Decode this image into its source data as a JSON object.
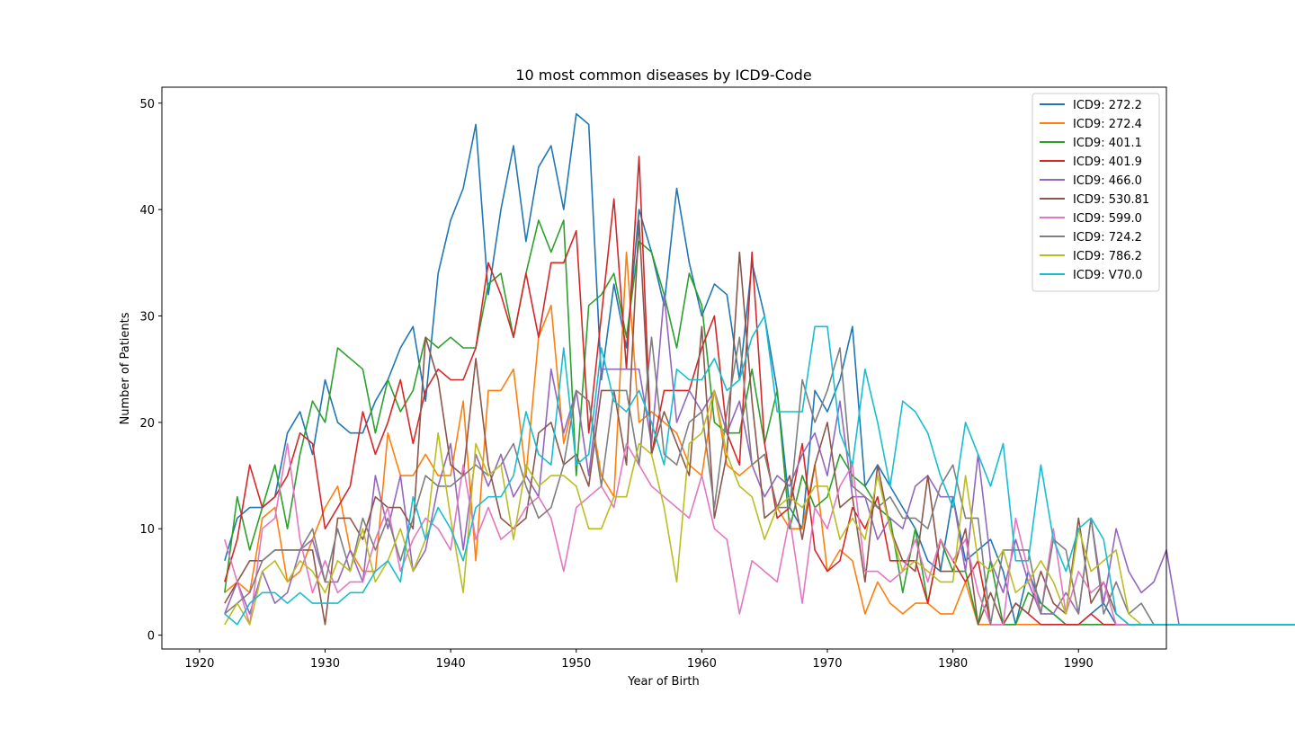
{
  "chart_data": {
    "type": "line",
    "title": "10 most common diseases by ICD9-Code",
    "xlabel": "Year of Birth",
    "ylabel": "Number of Patients",
    "xlim": [
      1917,
      1997
    ],
    "ylim": [
      -1.3,
      51.5
    ],
    "xticks": [
      1920,
      1930,
      1940,
      1950,
      1960,
      1970,
      1980,
      1990
    ],
    "yticks": [
      0,
      10,
      20,
      30,
      40,
      50
    ],
    "grid": false,
    "legend_position": "top-right",
    "series": [
      {
        "name": "ICD9: 272.2",
        "color": "#1f77b4",
        "x_start": 1922,
        "values": [
          7,
          11,
          12,
          12,
          13,
          19,
          21,
          17,
          24,
          20,
          19,
          19,
          22,
          24,
          27,
          29,
          22,
          34,
          39,
          42,
          48,
          32,
          40,
          46,
          37,
          44,
          46,
          40,
          49,
          48,
          24,
          33,
          27,
          40,
          36,
          31,
          42,
          35,
          30,
          33,
          32,
          24,
          35,
          30,
          23,
          12,
          10,
          23,
          21,
          24,
          29,
          14,
          16,
          14,
          12,
          10,
          7,
          6,
          13,
          7,
          8,
          9,
          6,
          1,
          6,
          3,
          2,
          1,
          1,
          2,
          3,
          1,
          1,
          1,
          1,
          1,
          1,
          1,
          1,
          1,
          1,
          1,
          1,
          1,
          1,
          1,
          1,
          1,
          1
        ]
      },
      {
        "name": "ICD9: 272.4",
        "color": "#ff7f0e",
        "x_start": 1922,
        "values": [
          4,
          5,
          4,
          11,
          12,
          5,
          6,
          9,
          12,
          14,
          8,
          6,
          6,
          19,
          15,
          15,
          17,
          15,
          15,
          22,
          7,
          23,
          23,
          25,
          15,
          28,
          31,
          18,
          23,
          22,
          15,
          13,
          36,
          20,
          21,
          20,
          19,
          16,
          15,
          23,
          16,
          15,
          16,
          17,
          12,
          10,
          10,
          16,
          6,
          8,
          7,
          2,
          5,
          3,
          2,
          3,
          3,
          2,
          2,
          5,
          1,
          1,
          1,
          1,
          1,
          1,
          1,
          1,
          1,
          1,
          1,
          1,
          1,
          1,
          1,
          1,
          1,
          1,
          1,
          1,
          1,
          1,
          1,
          1,
          1,
          1,
          1,
          1,
          1
        ]
      },
      {
        "name": "ICD9: 401.1",
        "color": "#2ca02c",
        "x_start": 1922,
        "values": [
          4,
          13,
          8,
          12,
          16,
          10,
          17,
          22,
          20,
          27,
          26,
          25,
          19,
          24,
          21,
          23,
          28,
          27,
          28,
          27,
          27,
          33,
          34,
          28,
          34,
          39,
          36,
          39,
          15,
          31,
          32,
          34,
          28,
          37,
          36,
          32,
          27,
          34,
          31,
          20,
          19,
          19,
          25,
          18,
          23,
          10,
          15,
          12,
          13,
          17,
          15,
          14,
          12,
          11,
          4,
          10,
          3,
          9,
          6,
          6,
          1,
          7,
          1,
          1,
          4,
          3,
          2,
          1,
          1,
          1,
          1,
          1,
          1,
          1,
          1,
          1,
          1,
          1,
          1,
          1,
          1,
          1,
          1,
          1,
          1,
          1,
          1,
          1,
          1
        ]
      },
      {
        "name": "ICD9: 401.9",
        "color": "#d62728",
        "x_start": 1922,
        "values": [
          5,
          9,
          16,
          12,
          13,
          15,
          19,
          18,
          10,
          12,
          14,
          21,
          17,
          20,
          24,
          18,
          23,
          25,
          24,
          24,
          27,
          35,
          32,
          28,
          34,
          28,
          35,
          35,
          38,
          19,
          30,
          41,
          25,
          45,
          17,
          23,
          23,
          23,
          27,
          30,
          19,
          16,
          36,
          18,
          11,
          12,
          18,
          8,
          6,
          7,
          12,
          10,
          13,
          7,
          7,
          7,
          3,
          9,
          7,
          5,
          7,
          1,
          1,
          3,
          2,
          1,
          1,
          1,
          1,
          2,
          1,
          1,
          1,
          1,
          1,
          1,
          1,
          1,
          1,
          1,
          1,
          1,
          1,
          1,
          1,
          1,
          1,
          1,
          1
        ]
      },
      {
        "name": "ICD9: 466.0",
        "color": "#9467bd",
        "x_start": 1922,
        "values": [
          2,
          5,
          2,
          6,
          3,
          4,
          8,
          9,
          5,
          5,
          8,
          5,
          15,
          10,
          15,
          6,
          8,
          14,
          18,
          8,
          17,
          14,
          17,
          13,
          15,
          13,
          25,
          19,
          23,
          15,
          25,
          25,
          25,
          25,
          18,
          32,
          20,
          23,
          21,
          23,
          19,
          22,
          16,
          13,
          15,
          14,
          17,
          19,
          15,
          22,
          13,
          13,
          9,
          11,
          10,
          14,
          15,
          13,
          13,
          6,
          17,
          7,
          4,
          9,
          5,
          2,
          2,
          4,
          2,
          11,
          3,
          10,
          6,
          4,
          5,
          8,
          1,
          1,
          1,
          1,
          1,
          1,
          1,
          1,
          1,
          1,
          1,
          1,
          1
        ]
      },
      {
        "name": "ICD9: 530.81",
        "color": "#8c564b",
        "x_start": 1922,
        "values": [
          3,
          5,
          7,
          7,
          8,
          8,
          8,
          8,
          1,
          11,
          11,
          9,
          13,
          12,
          12,
          10,
          28,
          24,
          16,
          15,
          26,
          16,
          11,
          10,
          11,
          19,
          20,
          16,
          17,
          14,
          23,
          23,
          16,
          39,
          17,
          21,
          18,
          15,
          29,
          11,
          17,
          36,
          22,
          11,
          12,
          15,
          9,
          16,
          20,
          12,
          13,
          5,
          16,
          10,
          7,
          6,
          15,
          6,
          6,
          10,
          1,
          4,
          1,
          3,
          2,
          6,
          3,
          2,
          11,
          3,
          5,
          2,
          1,
          1,
          1,
          1,
          1,
          1,
          1,
          1,
          1,
          1,
          1,
          1,
          1,
          1,
          1,
          1,
          1
        ]
      },
      {
        "name": "ICD9: 599.0",
        "color": "#e377c2",
        "x_start": 1922,
        "values": [
          9,
          5,
          1,
          10,
          11,
          18,
          9,
          4,
          7,
          4,
          5,
          5,
          9,
          12,
          6,
          9,
          11,
          10,
          8,
          16,
          9,
          12,
          9,
          10,
          12,
          13,
          11,
          6,
          12,
          13,
          14,
          12,
          18,
          16,
          14,
          13,
          12,
          11,
          15,
          10,
          9,
          2,
          7,
          6,
          5,
          11,
          3,
          12,
          10,
          14,
          16,
          6,
          6,
          5,
          6,
          9,
          5,
          9,
          7,
          9,
          4,
          1,
          1,
          11,
          6,
          2,
          10,
          2,
          6,
          4,
          5,
          1,
          1,
          1,
          1,
          1,
          1,
          1,
          1,
          1,
          1,
          1,
          1,
          1,
          1,
          1,
          1,
          1,
          1
        ]
      },
      {
        "name": "ICD9: 724.2",
        "color": "#7f7f7f",
        "x_start": 1922,
        "values": [
          2,
          3,
          4,
          7,
          8,
          8,
          8,
          10,
          5,
          10,
          6,
          11,
          8,
          11,
          7,
          11,
          15,
          14,
          14,
          15,
          16,
          15,
          16,
          18,
          14,
          11,
          12,
          16,
          23,
          22,
          14,
          23,
          23,
          16,
          28,
          17,
          16,
          20,
          21,
          12,
          21,
          28,
          16,
          17,
          12,
          12,
          24,
          20,
          23,
          27,
          14,
          13,
          12,
          13,
          11,
          11,
          10,
          14,
          16,
          11,
          11,
          1,
          8,
          8,
          8,
          2,
          9,
          8,
          2,
          11,
          2,
          5,
          2,
          3,
          1,
          1,
          1,
          1,
          1,
          1,
          1,
          1,
          1,
          1,
          1,
          1,
          1,
          1,
          1
        ]
      },
      {
        "name": "ICD9: 786.2",
        "color": "#bcbd22",
        "x_start": 1922,
        "values": [
          1,
          3,
          1,
          6,
          7,
          5,
          7,
          6,
          4,
          7,
          6,
          10,
          5,
          7,
          10,
          6,
          9,
          19,
          11,
          4,
          18,
          15,
          16,
          9,
          16,
          14,
          15,
          15,
          14,
          10,
          10,
          13,
          13,
          18,
          17,
          12,
          5,
          18,
          19,
          23,
          17,
          14,
          13,
          9,
          12,
          13,
          12,
          14,
          14,
          9,
          11,
          9,
          15,
          10,
          6,
          7,
          6,
          5,
          5,
          15,
          7,
          6,
          8,
          4,
          5,
          7,
          5,
          2,
          10,
          6,
          7,
          8,
          2,
          1,
          1,
          1,
          1,
          1,
          1,
          1,
          1,
          1,
          1,
          1,
          1,
          1,
          1,
          1,
          1
        ]
      },
      {
        "name": "ICD9: V70.0",
        "color": "#17becf",
        "x_start": 1922,
        "values": [
          2,
          1,
          3,
          4,
          4,
          3,
          4,
          3,
          3,
          3,
          4,
          4,
          6,
          7,
          5,
          13,
          9,
          12,
          10,
          7,
          12,
          13,
          13,
          15,
          21,
          17,
          16,
          27,
          16,
          17,
          27,
          22,
          21,
          23,
          20,
          16,
          25,
          24,
          24,
          26,
          23,
          24,
          28,
          30,
          21,
          21,
          21,
          29,
          29,
          19,
          16,
          25,
          20,
          14,
          22,
          21,
          19,
          15,
          12,
          20,
          17,
          14,
          18,
          7,
          7,
          16,
          9,
          6,
          10,
          11,
          9,
          2,
          1,
          1,
          1,
          1,
          1,
          1,
          1,
          1,
          1,
          1,
          1,
          1,
          1,
          1,
          1,
          1,
          1
        ]
      }
    ]
  }
}
